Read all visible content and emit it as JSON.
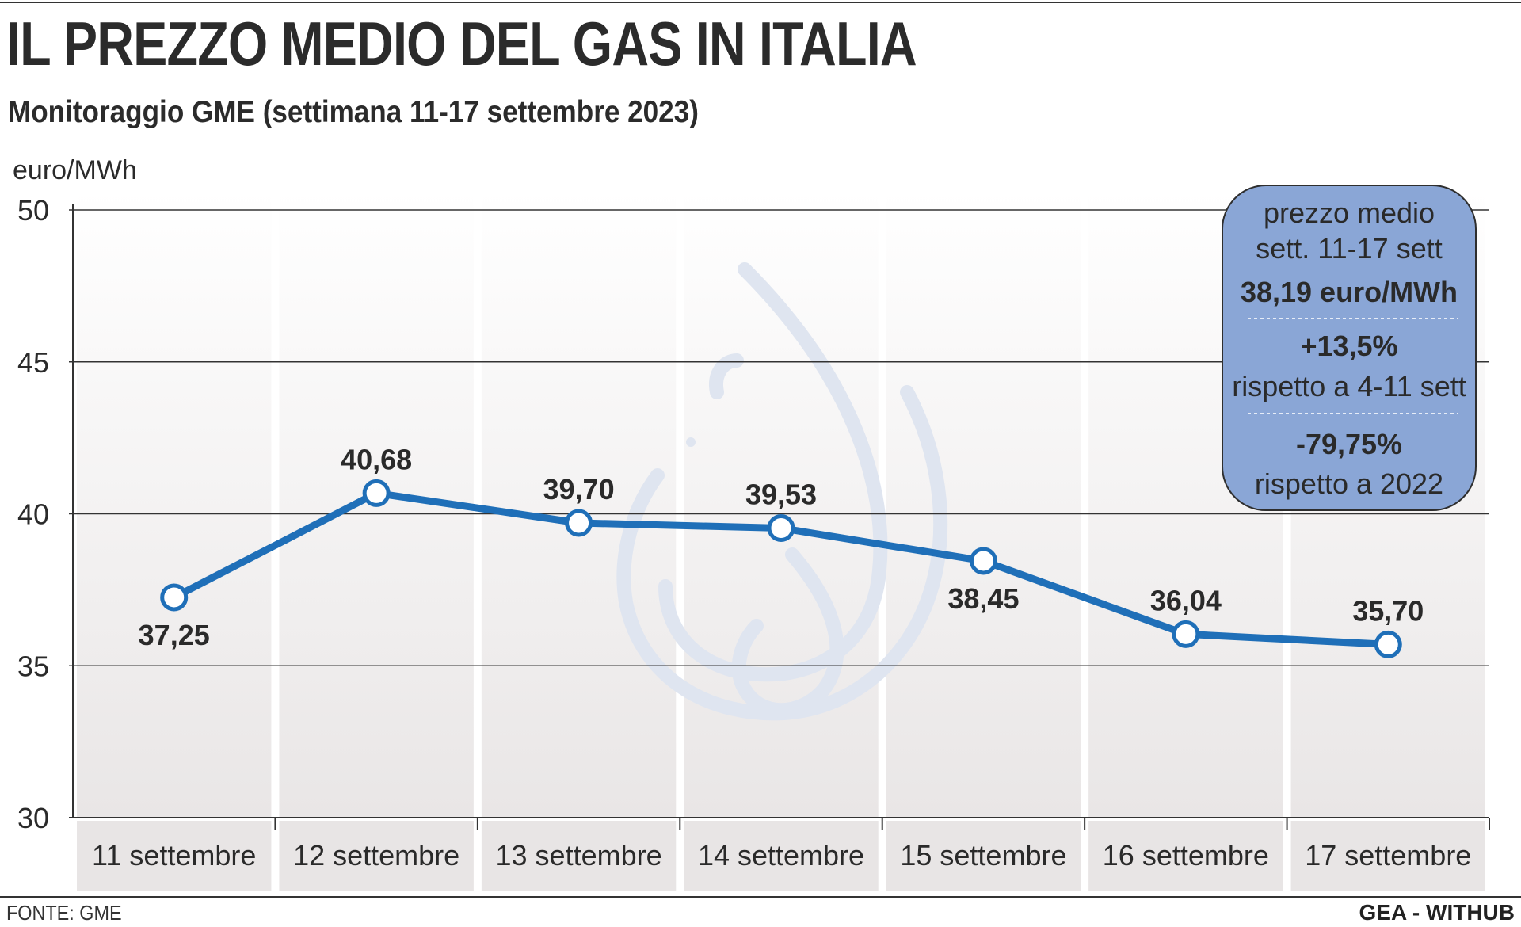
{
  "header": {
    "title": "IL PREZZO MEDIO DEL GAS IN ITALIA",
    "subtitle": "Monitoraggio GME (settimana 11-17 settembre 2023)"
  },
  "chart_data": {
    "type": "line",
    "ylabel": "euro/MWh",
    "ylim": [
      30,
      50
    ],
    "yticks": [
      50,
      45,
      40,
      35,
      30
    ],
    "categories": [
      "11 settembre",
      "12 settembre",
      "13 settembre",
      "14 settembre",
      "15 settembre",
      "16 settembre",
      "17 settembre"
    ],
    "values": [
      37.25,
      40.68,
      39.7,
      39.53,
      38.45,
      36.04,
      35.7
    ],
    "value_labels": [
      "37,25",
      "40,68",
      "39,70",
      "39,53",
      "38,45",
      "36,04",
      "35,70"
    ],
    "label_positions": [
      "below",
      "above",
      "above",
      "above",
      "below",
      "above",
      "above"
    ],
    "grid": true,
    "line_color": "#1f6fb8"
  },
  "info_box": {
    "line1": "prezzo medio",
    "line2": "sett. 11-17 sett",
    "line3": "38,19 euro/MWh",
    "line4": "+13,5%",
    "line5": "rispetto a 4-11 sett",
    "line6": "-79,75%",
    "line7": "rispetto a 2022",
    "color": "#8aa6d6"
  },
  "footer": {
    "source": "FONTE: GME",
    "credit": "GEA - WITHUB"
  },
  "icons": {
    "watermark": "flame-icon"
  }
}
